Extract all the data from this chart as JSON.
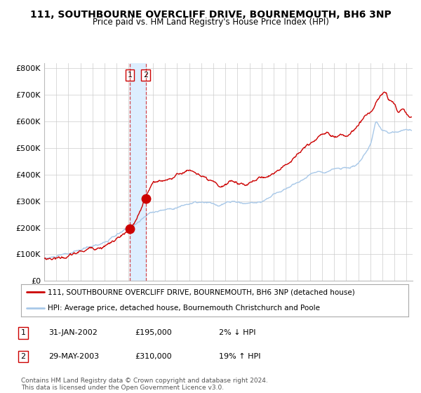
{
  "title": "111, SOUTHBOURNE OVERCLIFF DRIVE, BOURNEMOUTH, BH6 3NP",
  "subtitle": "Price paid vs. HM Land Registry's House Price Index (HPI)",
  "title_fontsize": 10,
  "subtitle_fontsize": 8.5,
  "xlim": [
    1995.0,
    2025.5
  ],
  "ylim": [
    0,
    820000
  ],
  "yticks": [
    0,
    100000,
    200000,
    300000,
    400000,
    500000,
    600000,
    700000,
    800000
  ],
  "ytick_labels": [
    "£0",
    "£100K",
    "£200K",
    "£300K",
    "£400K",
    "£500K",
    "£600K",
    "£700K",
    "£800K"
  ],
  "hpi_color": "#a8c8e8",
  "price_color": "#cc0000",
  "marker_color": "#cc0000",
  "sale1_date": 2002.08,
  "sale1_price": 195000,
  "sale1_label": "1",
  "sale2_date": 2003.41,
  "sale2_price": 310000,
  "sale2_label": "2",
  "vline_color": "#cc0000",
  "vspan_color": "#ddeeff",
  "grid_color": "#cccccc",
  "background_color": "#ffffff",
  "legend1": "111, SOUTHBOURNE OVERCLIFF DRIVE, BOURNEMOUTH, BH6 3NP (detached house)",
  "legend2": "HPI: Average price, detached house, Bournemouth Christchurch and Poole",
  "table_row1": [
    "1",
    "31-JAN-2002",
    "£195,000",
    "2% ↓ HPI"
  ],
  "table_row2": [
    "2",
    "29-MAY-2003",
    "£310,000",
    "19% ↑ HPI"
  ],
  "footer": "Contains HM Land Registry data © Crown copyright and database right 2024.\nThis data is licensed under the Open Government Licence v3.0."
}
